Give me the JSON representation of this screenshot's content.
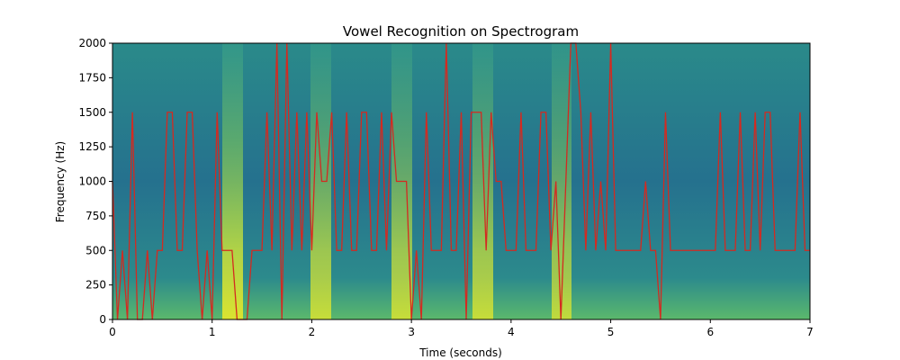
{
  "chart_data": {
    "type": "line",
    "title": "Vowel Recognition on Spectrogram",
    "x_label": "Time (seconds)",
    "y_label": "Frequency (Hz)",
    "xlim": [
      0,
      7
    ],
    "ylim": [
      0,
      2000
    ],
    "xticks": [
      0,
      1,
      2,
      3,
      4,
      5,
      6,
      7
    ],
    "yticks": [
      0,
      250,
      500,
      750,
      1000,
      1250,
      1500,
      1750,
      2000
    ],
    "x": [
      0,
      0.05,
      0.1,
      0.15,
      0.2,
      0.25,
      0.3,
      0.35,
      0.4,
      0.45,
      0.5,
      0.55,
      0.6,
      0.65,
      0.7,
      0.75,
      0.8,
      0.85,
      0.9,
      0.95,
      1,
      1.05,
      1.1,
      1.15,
      1.2,
      1.25,
      1.3,
      1.35,
      1.4,
      1.45,
      1.5,
      1.55,
      1.6,
      1.65,
      1.7,
      1.75,
      1.8,
      1.85,
      1.9,
      1.95,
      2,
      2.05,
      2.1,
      2.15,
      2.2,
      2.25,
      2.3,
      2.35,
      2.4,
      2.45,
      2.5,
      2.55,
      2.6,
      2.65,
      2.7,
      2.75,
      2.8,
      2.85,
      2.9,
      2.95,
      3,
      3.05,
      3.1,
      3.15,
      3.2,
      3.25,
      3.3,
      3.35,
      3.4,
      3.45,
      3.5,
      3.55,
      3.6,
      3.65,
      3.7,
      3.75,
      3.8,
      3.85,
      3.9,
      3.95,
      4,
      4.05,
      4.1,
      4.15,
      4.2,
      4.25,
      4.3,
      4.35,
      4.4,
      4.45,
      4.5,
      4.55,
      4.6,
      4.65,
      4.7,
      4.75,
      4.8,
      4.85,
      4.9,
      4.95,
      5,
      5.05,
      5.1,
      5.15,
      5.2,
      5.25,
      5.3,
      5.35,
      5.4,
      5.45,
      5.5,
      5.55,
      5.6,
      5.65,
      5.7,
      5.75,
      5.8,
      5.85,
      5.9,
      5.95,
      6,
      6.05,
      6.1,
      6.15,
      6.2,
      6.25,
      6.3,
      6.35,
      6.4,
      6.45,
      6.5,
      6.55,
      6.6,
      6.65,
      6.7,
      6.75,
      6.8,
      6.85,
      6.9,
      6.95,
      7
    ],
    "series": [
      {
        "color": "#d42a20",
        "values": [
          1000,
          0,
          500,
          0,
          1500,
          0,
          0,
          500,
          0,
          500,
          500,
          1500,
          1500,
          500,
          500,
          1500,
          1500,
          500,
          0,
          500,
          0,
          1500,
          500,
          500,
          500,
          0,
          0,
          0,
          500,
          500,
          500,
          1500,
          500,
          2000,
          0,
          2000,
          500,
          1500,
          500,
          1500,
          500,
          1500,
          1000,
          1000,
          1500,
          500,
          500,
          1500,
          500,
          500,
          1500,
          1500,
          500,
          500,
          1500,
          500,
          1500,
          1000,
          1000,
          1000,
          0,
          500,
          0,
          1500,
          500,
          500,
          500,
          2000,
          500,
          500,
          1500,
          0,
          1500,
          1500,
          1500,
          500,
          1500,
          1000,
          1000,
          500,
          500,
          500,
          1500,
          500,
          500,
          500,
          1500,
          1500,
          500,
          1000,
          0,
          1000,
          2000,
          2000,
          1500,
          500,
          1500,
          500,
          1000,
          500,
          2000,
          500,
          500,
          500,
          500,
          500,
          500,
          1000,
          500,
          500,
          0,
          1500,
          500,
          500,
          500,
          500,
          500,
          500,
          500,
          500,
          500,
          500,
          1500,
          500,
          500,
          500,
          1500,
          500,
          500,
          1500,
          500,
          1500,
          1500,
          500,
          500,
          500,
          500,
          500,
          1500,
          500,
          500
        ]
      }
    ]
  }
}
